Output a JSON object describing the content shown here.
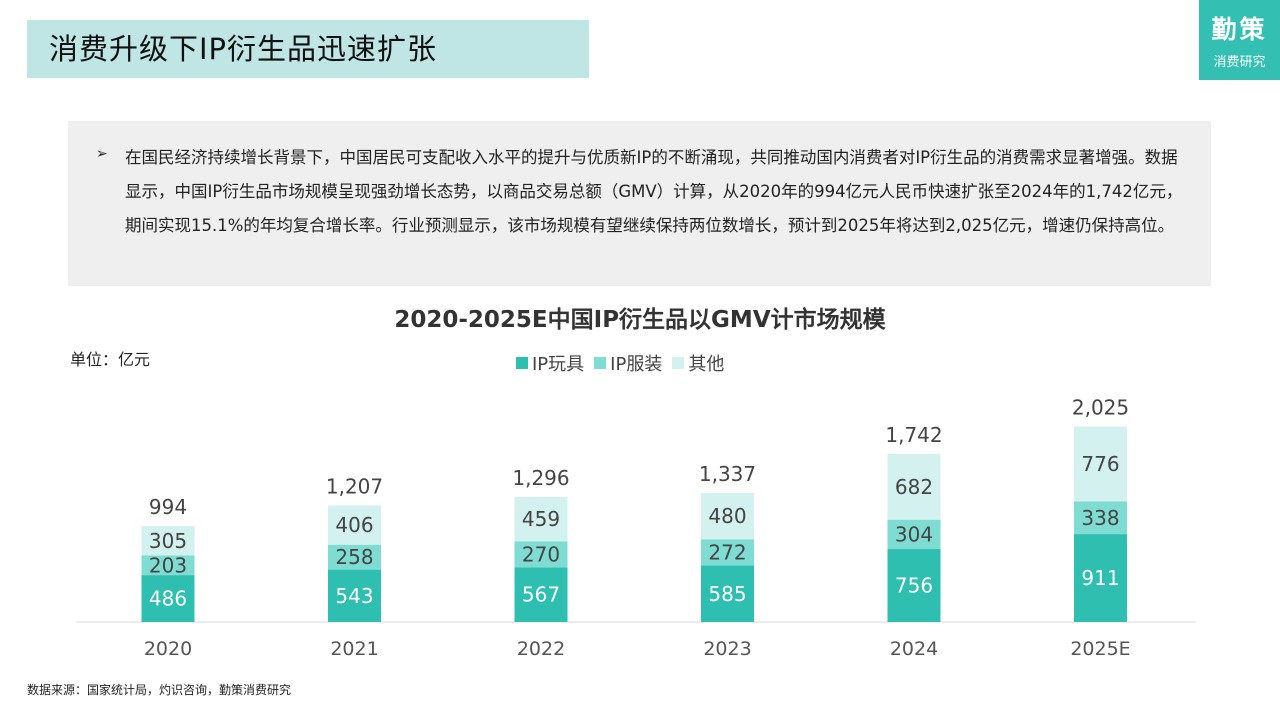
{
  "header": {
    "title": "消费升级下IP衍生品迅速扩张"
  },
  "brand": {
    "main": "勤策",
    "sub": "消费研究"
  },
  "info": {
    "bullet": "➢",
    "text": "在国民经济持续增长背景下，中国居民可支配收入水平的提升与优质新IP的不断涌现，共同推动国内消费者对IP衍生品的消费需求显著增强。数据显示，中国IP衍生品市场规模呈现强劲增长态势，以商品交易总额（GMV）计算，从2020年的994亿元人民币快速扩张至2024年的1,742亿元，期间实现15.1%的年均复合增长率。行业预测显示，该市场规模有望继续保持两位数增长，预计到2025年将达到2,025亿元，增速仍保持高位。"
  },
  "chart_data": {
    "type": "bar",
    "stacked": true,
    "title": "2020-2025E中国IP衍生品以GMV计市场规模",
    "unit_label": "单位：亿元",
    "categories": [
      "2020",
      "2021",
      "2022",
      "2023",
      "2024",
      "2025E"
    ],
    "series": [
      {
        "name": "IP玩具",
        "color": "#2ebfb1",
        "values": [
          486,
          543,
          567,
          585,
          756,
          911
        ]
      },
      {
        "name": "IP服装",
        "color": "#7fdcd3",
        "values": [
          203,
          258,
          270,
          272,
          304,
          338
        ]
      },
      {
        "name": "其他",
        "color": "#d3f1ef",
        "values": [
          305,
          406,
          459,
          480,
          682,
          776
        ]
      }
    ],
    "totals": [
      "994",
      "1,207",
      "1,296",
      "1,337",
      "1,742",
      "2,025"
    ],
    "legend_position": "top-center",
    "grid": false
  },
  "source": "数据来源：国家统计局，灼识咨询，勤策消费研究"
}
